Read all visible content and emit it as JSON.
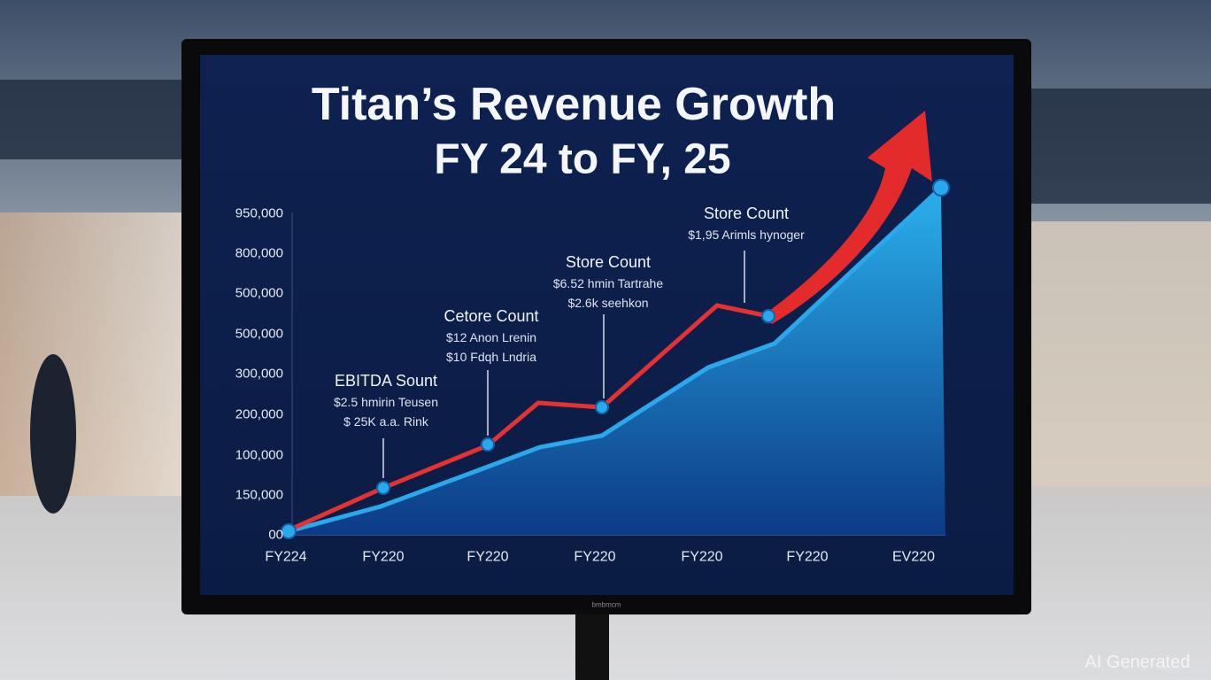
{
  "screen": {
    "title": [
      "Titan’s Revenue Growth",
      "FY 24  to FY, 25"
    ],
    "y_axis_labels": [
      "950,000",
      "800,000",
      "500,000",
      "500,000",
      "300,000",
      "200,000",
      "100,000",
      "150,000",
      "00"
    ],
    "x_axis_labels": [
      "FY224",
      "FY220",
      "FY220",
      "FY220",
      "FY220",
      "FY220",
      "EV220"
    ],
    "annotations": [
      {
        "heading": "EBITDA Sount",
        "lines": [
          "$2.5 hmirin Teusen",
          "$ 25K a.a. Rink"
        ]
      },
      {
        "heading": "Cetore Count",
        "lines": [
          "$12 Anon Lrenin",
          "$10 Fdqh Lndria"
        ]
      },
      {
        "heading": "Store Count",
        "lines": [
          "$6.52 hmin Tartrahe",
          "$2.6k seehkon"
        ]
      },
      {
        "heading": "Store Count",
        "lines": [
          "$1,95 Arimls hynoger"
        ]
      }
    ]
  },
  "bezel_brand": "bmbmcm",
  "watermark": "AI Generated"
}
